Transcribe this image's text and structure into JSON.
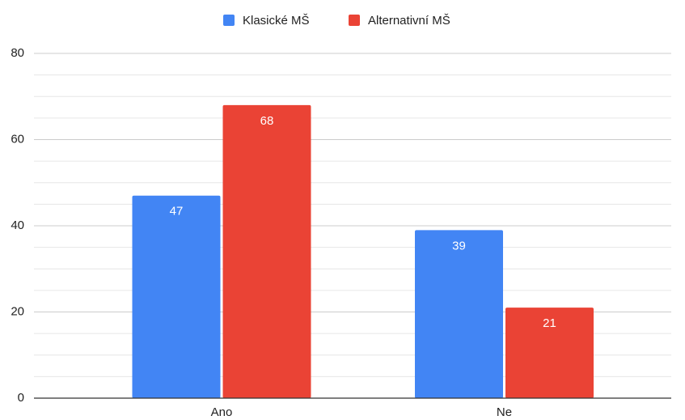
{
  "chart_data": {
    "type": "bar",
    "categories": [
      "Ano",
      "Ne"
    ],
    "series": [
      {
        "name": "Klasické MŠ",
        "color": "#4285f4",
        "values": [
          47,
          39
        ]
      },
      {
        "name": "Alternativní MŠ",
        "color": "#ea4335",
        "values": [
          68,
          21
        ]
      }
    ],
    "ylim": [
      0,
      80
    ],
    "yticks": [
      0,
      20,
      40,
      60,
      80
    ],
    "grid": true,
    "legend": "top"
  }
}
